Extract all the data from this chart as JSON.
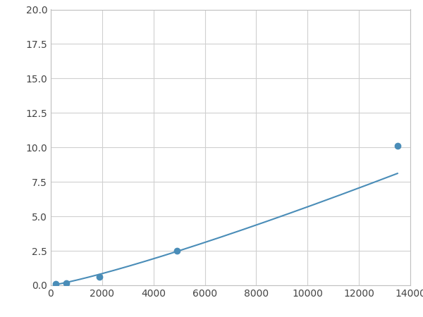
{
  "x_data": [
    200,
    600,
    1900,
    4900,
    13500
  ],
  "y_data": [
    0.08,
    0.15,
    0.6,
    2.5,
    10.1
  ],
  "line_color": "#4a8db8",
  "marker_color": "#4a8db8",
  "marker_size": 6,
  "xlim": [
    0,
    14000
  ],
  "ylim": [
    0,
    20.0
  ],
  "xticks": [
    0,
    2000,
    4000,
    6000,
    8000,
    10000,
    12000,
    14000
  ],
  "yticks": [
    0.0,
    2.5,
    5.0,
    7.5,
    10.0,
    12.5,
    15.0,
    17.5,
    20.0
  ],
  "grid_color": "#d0d0d0",
  "background_color": "#ffffff",
  "figsize": [
    6.0,
    4.5
  ],
  "dpi": 100,
  "tick_fontsize": 10,
  "spine_color": "#c0c0c0"
}
